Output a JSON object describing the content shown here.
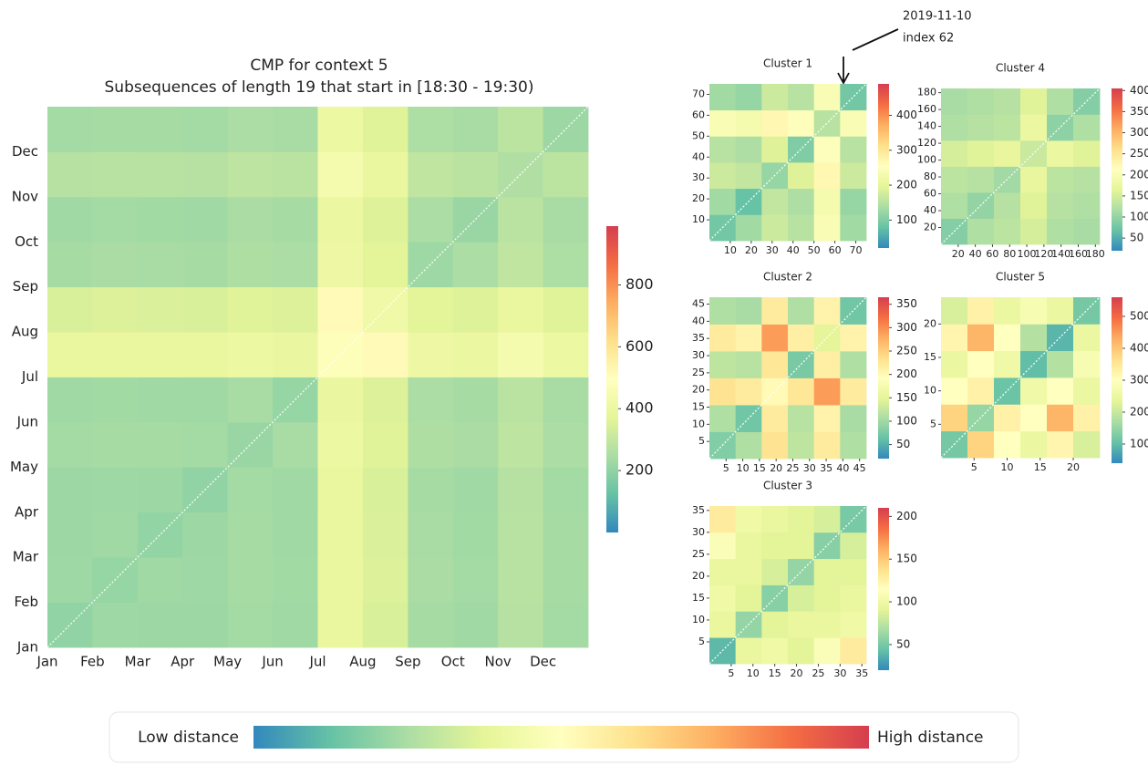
{
  "chart_data": [
    {
      "type": "heatmap",
      "title": "CMP for context 5",
      "subtitle": "Subsequences of length 19 that start in [18:30 - 19:30)",
      "categories": [
        "Jan",
        "Feb",
        "Mar",
        "Apr",
        "May",
        "Jun",
        "Jul",
        "Aug",
        "Sep",
        "Oct",
        "Nov",
        "Dec"
      ],
      "matrix": [
        [
          200,
          225,
          222,
          220,
          235,
          228,
          390,
          345,
          240,
          230,
          270,
          235
        ],
        [
          225,
          210,
          228,
          225,
          240,
          232,
          395,
          350,
          245,
          235,
          275,
          240
        ],
        [
          222,
          228,
          205,
          222,
          238,
          230,
          392,
          348,
          242,
          232,
          272,
          238
        ],
        [
          220,
          225,
          222,
          200,
          235,
          228,
          390,
          345,
          240,
          230,
          270,
          235
        ],
        [
          235,
          240,
          238,
          235,
          215,
          242,
          405,
          360,
          255,
          245,
          285,
          250
        ],
        [
          228,
          232,
          230,
          228,
          242,
          210,
          398,
          352,
          248,
          238,
          278,
          242
        ],
        [
          390,
          395,
          392,
          390,
          405,
          398,
          480,
          515,
          410,
          400,
          440,
          405
        ],
        [
          345,
          350,
          348,
          345,
          360,
          352,
          515,
          420,
          365,
          355,
          395,
          360
        ],
        [
          240,
          245,
          242,
          240,
          255,
          248,
          410,
          365,
          225,
          248,
          290,
          252
        ],
        [
          230,
          235,
          232,
          230,
          245,
          238,
          400,
          355,
          248,
          215,
          280,
          242
        ],
        [
          270,
          275,
          272,
          270,
          285,
          278,
          440,
          395,
          290,
          280,
          260,
          282
        ],
        [
          235,
          240,
          238,
          235,
          250,
          242,
          405,
          360,
          252,
          242,
          282,
          220
        ]
      ],
      "clim": [
        0,
        990
      ],
      "cticks": [
        200,
        400,
        600,
        800
      ]
    },
    {
      "type": "heatmap",
      "title": "Cluster 1",
      "xlim": [
        0,
        75
      ],
      "ylim": [
        0,
        75
      ],
      "xticks": [
        10,
        20,
        30,
        40,
        50,
        60,
        70
      ],
      "yticks": [
        10,
        20,
        30,
        40,
        50,
        60,
        70
      ],
      "matrix": [
        [
          90,
          130,
          170,
          150,
          240,
          130
        ],
        [
          130,
          80,
          160,
          140,
          230,
          120
        ],
        [
          170,
          160,
          120,
          190,
          270,
          170
        ],
        [
          150,
          140,
          190,
          100,
          250,
          150
        ],
        [
          240,
          230,
          270,
          250,
          150,
          240
        ],
        [
          130,
          120,
          170,
          150,
          240,
          90
        ]
      ],
      "clim": [
        20,
        490
      ],
      "cticks": [
        100,
        200,
        300,
        400
      ],
      "annotations": [
        "2019-11-10",
        "index 62"
      ]
    },
    {
      "type": "heatmap",
      "title": "Cluster 2",
      "xlim": [
        0,
        47
      ],
      "ylim": [
        0,
        47
      ],
      "xticks": [
        5,
        10,
        15,
        20,
        25,
        30,
        35,
        40,
        45
      ],
      "yticks": [
        5,
        10,
        15,
        20,
        25,
        30,
        35,
        40,
        45
      ],
      "matrix": [
        [
          80,
          110,
          230,
          120,
          220,
          110
        ],
        [
          110,
          70,
          220,
          115,
          210,
          105
        ],
        [
          230,
          220,
          200,
          225,
          290,
          220
        ],
        [
          120,
          115,
          225,
          75,
          215,
          110
        ],
        [
          220,
          210,
          290,
          215,
          150,
          210
        ],
        [
          110,
          105,
          220,
          110,
          210,
          70
        ]
      ],
      "clim": [
        20,
        365
      ],
      "cticks": [
        50,
        100,
        150,
        200,
        250,
        300,
        350
      ]
    },
    {
      "type": "heatmap",
      "title": "Cluster 3",
      "xlim": [
        0,
        36
      ],
      "ylim": [
        0,
        36
      ],
      "xticks": [
        5,
        10,
        15,
        20,
        25,
        30,
        35
      ],
      "yticks": [
        5,
        10,
        15,
        20,
        25,
        30,
        35
      ],
      "matrix": [
        [
          40,
          95,
          100,
          90,
          110,
          130
        ],
        [
          95,
          60,
          90,
          95,
          95,
          100
        ],
        [
          100,
          90,
          55,
          85,
          90,
          95
        ],
        [
          95,
          95,
          85,
          60,
          90,
          90
        ],
        [
          110,
          95,
          90,
          90,
          55,
          85
        ],
        [
          130,
          100,
          95,
          90,
          85,
          50
        ]
      ],
      "clim": [
        20,
        210
      ],
      "cticks": [
        50,
        100,
        150,
        200
      ]
    },
    {
      "type": "heatmap",
      "title": "Cluster 4",
      "xlim": [
        0,
        185
      ],
      "ylim": [
        0,
        185
      ],
      "xticks": [
        20,
        40,
        60,
        80,
        100,
        120,
        140,
        160,
        180
      ],
      "yticks": [
        20,
        40,
        60,
        80,
        100,
        120,
        140,
        160,
        180
      ],
      "matrix": [
        [
          90,
          120,
          130,
          150,
          120,
          115
        ],
        [
          120,
          100,
          125,
          160,
          125,
          120
        ],
        [
          130,
          125,
          110,
          170,
          130,
          125
        ],
        [
          150,
          160,
          170,
          140,
          175,
          160
        ],
        [
          120,
          125,
          130,
          175,
          95,
          120
        ],
        [
          115,
          120,
          125,
          160,
          120,
          90
        ]
      ],
      "clim": [
        20,
        405
      ],
      "cticks": [
        50,
        100,
        150,
        200,
        250,
        300,
        350,
        400
      ]
    },
    {
      "type": "heatmap",
      "title": "Cluster 5",
      "xlim": [
        0,
        24
      ],
      "ylim": [
        0,
        24
      ],
      "xticks": [
        5,
        10,
        15,
        20
      ],
      "yticks": [
        5,
        10,
        15,
        20
      ],
      "matrix": [
        [
          120,
          380,
          300,
          250,
          320,
          220
        ],
        [
          380,
          150,
          330,
          300,
          420,
          330
        ],
        [
          300,
          330,
          110,
          260,
          300,
          250
        ],
        [
          250,
          300,
          260,
          100,
          180,
          280
        ],
        [
          320,
          420,
          300,
          180,
          90,
          250
        ],
        [
          220,
          330,
          250,
          280,
          250,
          120
        ]
      ],
      "clim": [
        40,
        560
      ],
      "cticks": [
        100,
        200,
        300,
        400,
        500
      ]
    }
  ],
  "colormap": [
    "#3288bd",
    "#66c2a5",
    "#abdda4",
    "#e6f598",
    "#ffffbf",
    "#fee08b",
    "#fdae61",
    "#f46d43",
    "#d53e4f"
  ],
  "legend": {
    "low": "Low distance",
    "high": "High distance"
  }
}
